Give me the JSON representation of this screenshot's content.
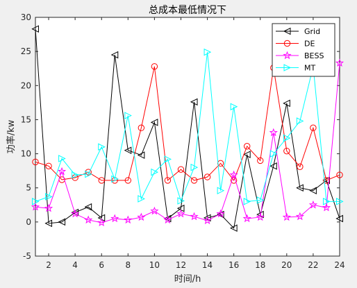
{
  "chart_data": {
    "type": "line",
    "title": "总成本最低情况下",
    "xlabel": "时间/h",
    "ylabel": "功率/kw",
    "xlim": [
      1,
      24
    ],
    "ylim": [
      -5,
      30
    ],
    "xticks": [
      2,
      4,
      6,
      8,
      10,
      12,
      14,
      16,
      18,
      20,
      22,
      24
    ],
    "yticks": [
      -5,
      0,
      5,
      10,
      15,
      20,
      25,
      30
    ],
    "x": [
      1,
      2,
      3,
      4,
      5,
      6,
      7,
      8,
      9,
      10,
      11,
      12,
      13,
      14,
      15,
      16,
      17,
      18,
      19,
      20,
      21,
      22,
      23,
      24
    ],
    "grid": false,
    "legend_position": "top-right",
    "series": [
      {
        "name": "Grid",
        "color": "#000000",
        "marker": "triangle-left",
        "values": [
          28.3,
          -0.2,
          0.0,
          1.4,
          2.2,
          0.6,
          24.5,
          10.5,
          9.8,
          14.6,
          0.5,
          2.0,
          17.6,
          0.6,
          1.1,
          -0.9,
          9.9,
          1.1,
          8.2,
          17.4,
          5.0,
          4.6,
          6.1,
          0.5
        ]
      },
      {
        "name": "DE",
        "color": "#ff0000",
        "marker": "circle",
        "values": [
          8.8,
          8.2,
          6.2,
          6.5,
          7.3,
          6.1,
          6.1,
          6.1,
          13.8,
          22.8,
          6.1,
          7.7,
          6.1,
          6.6,
          8.6,
          6.1,
          11.1,
          9.0,
          22.6,
          10.4,
          8.1,
          13.8,
          6.1,
          6.9
        ]
      },
      {
        "name": "BESS",
        "color": "#ff00ff",
        "marker": "pentagram",
        "values": [
          2.2,
          2.0,
          7.4,
          1.2,
          0.3,
          -0.1,
          0.5,
          0.3,
          0.7,
          1.6,
          0.3,
          1.2,
          0.8,
          0.2,
          1.2,
          6.9,
          0.5,
          0.7,
          13.1,
          0.7,
          0.8,
          2.5,
          2.1,
          23.3
        ]
      },
      {
        "name": "MT",
        "color": "#00ffff",
        "marker": "triangle-right",
        "values": [
          3.0,
          3.7,
          9.3,
          6.9,
          7.0,
          11.0,
          6.3,
          15.6,
          3.4,
          7.3,
          9.2,
          3.1,
          8.0,
          24.9,
          4.6,
          16.9,
          3.0,
          3.2,
          10.0,
          12.3,
          14.8,
          22.8,
          3.0,
          3.0
        ]
      }
    ]
  }
}
